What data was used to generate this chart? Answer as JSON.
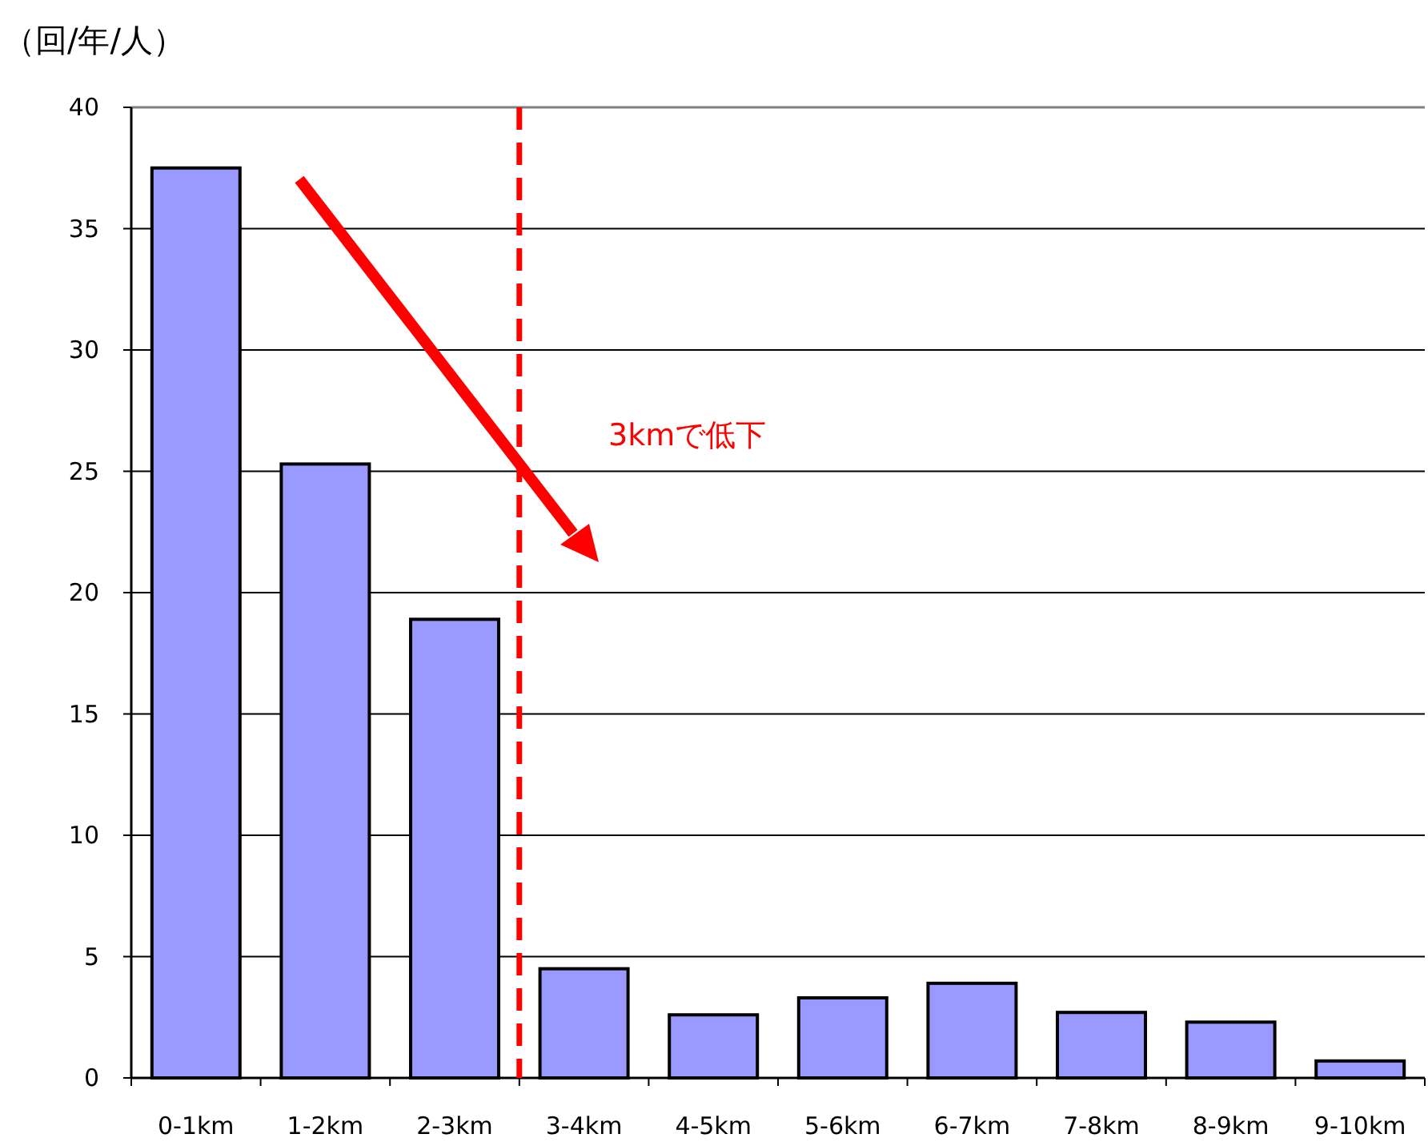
{
  "chart_data": {
    "type": "bar",
    "ylabel": "（回/年/人）",
    "categories": [
      "0-1km",
      "1-2km",
      "2-3km",
      "3-4km",
      "4-5km",
      "5-6km",
      "6-7km",
      "7-8km",
      "8-9km",
      "9-10km"
    ],
    "values": [
      37.5,
      25.3,
      18.9,
      4.5,
      2.6,
      3.3,
      3.9,
      2.7,
      2.3,
      0.7
    ],
    "color": "#9999ff",
    "ylim": [
      0,
      40
    ],
    "yticks": [
      0,
      5,
      10,
      15,
      20,
      25,
      30,
      35,
      40
    ],
    "grid": "y",
    "annotations": [
      "3kmで低下"
    ]
  }
}
